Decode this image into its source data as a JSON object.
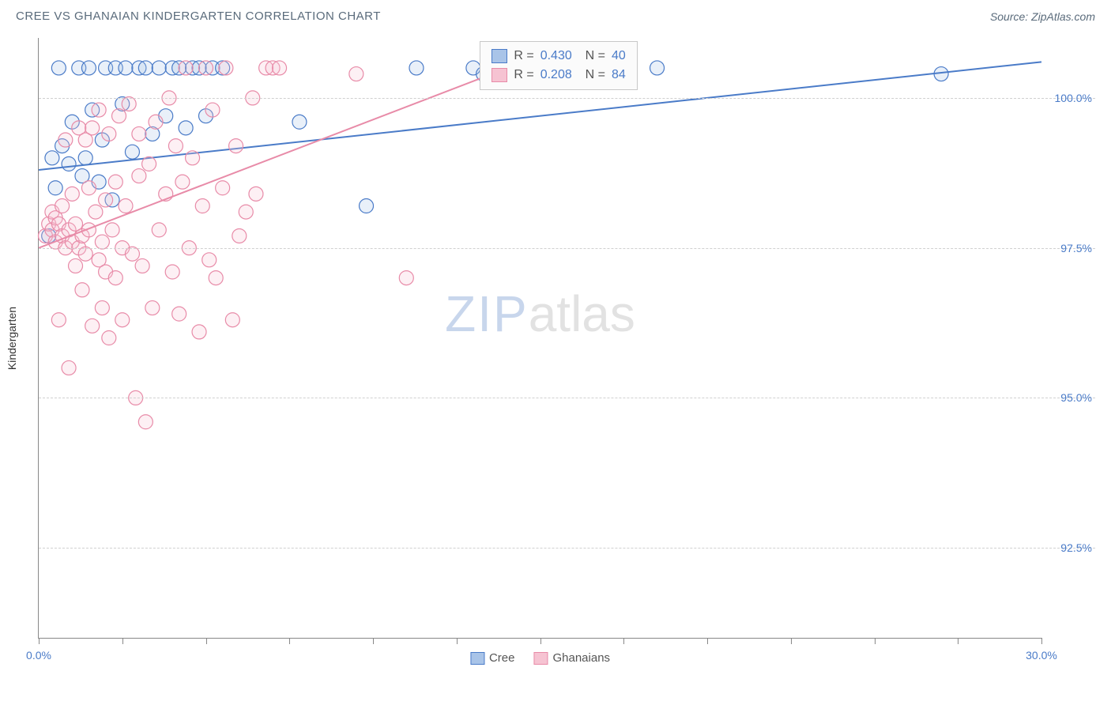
{
  "header": {
    "title": "CREE VS GHANAIAN KINDERGARTEN CORRELATION CHART",
    "source": "Source: ZipAtlas.com"
  },
  "chart": {
    "type": "scatter",
    "y_axis_label": "Kindergarten",
    "xlim": [
      0,
      30
    ],
    "ylim": [
      91,
      101
    ],
    "x_ticks": [
      0,
      2.5,
      5,
      7.5,
      10,
      12.5,
      15,
      17.5,
      20,
      22.5,
      25,
      27.5,
      30
    ],
    "x_tick_labels": {
      "0": "0.0%",
      "30": "30.0%"
    },
    "y_gridlines": [
      92.5,
      95.0,
      97.5,
      100.0
    ],
    "y_tick_labels": {
      "92.5": "92.5%",
      "95.0": "95.0%",
      "97.5": "97.5%",
      "100.0": "100.0%"
    },
    "background_color": "#ffffff",
    "grid_color": "#d0d0d0",
    "axis_color": "#888888",
    "tick_label_color": "#4a7bc8",
    "marker_radius": 9,
    "marker_stroke_width": 1.2,
    "marker_fill_opacity": 0.25,
    "line_width": 2,
    "series": [
      {
        "name": "Cree",
        "color_stroke": "#4a7bc8",
        "color_fill": "#a9c4e8",
        "R": "0.430",
        "N": "40",
        "trend": {
          "x1": 0,
          "y1": 98.8,
          "x2": 30,
          "y2": 100.6
        },
        "points": [
          [
            0.3,
            97.7
          ],
          [
            0.4,
            99.0
          ],
          [
            0.5,
            98.5
          ],
          [
            0.6,
            100.5
          ],
          [
            0.7,
            99.2
          ],
          [
            0.9,
            98.9
          ],
          [
            1.0,
            99.6
          ],
          [
            1.2,
            100.5
          ],
          [
            1.3,
            98.7
          ],
          [
            1.4,
            99.0
          ],
          [
            1.5,
            100.5
          ],
          [
            1.6,
            99.8
          ],
          [
            1.8,
            98.6
          ],
          [
            1.9,
            99.3
          ],
          [
            2.0,
            100.5
          ],
          [
            2.2,
            98.3
          ],
          [
            2.3,
            100.5
          ],
          [
            2.5,
            99.9
          ],
          [
            2.6,
            100.5
          ],
          [
            2.8,
            99.1
          ],
          [
            3.0,
            100.5
          ],
          [
            3.2,
            100.5
          ],
          [
            3.4,
            99.4
          ],
          [
            3.6,
            100.5
          ],
          [
            3.8,
            99.7
          ],
          [
            4.0,
            100.5
          ],
          [
            4.2,
            100.5
          ],
          [
            4.4,
            99.5
          ],
          [
            4.6,
            100.5
          ],
          [
            4.8,
            100.5
          ],
          [
            5.0,
            99.7
          ],
          [
            5.2,
            100.5
          ],
          [
            5.5,
            100.5
          ],
          [
            7.8,
            99.6
          ],
          [
            9.8,
            98.2
          ],
          [
            11.3,
            100.5
          ],
          [
            13.0,
            100.5
          ],
          [
            13.3,
            100.4
          ],
          [
            18.5,
            100.5
          ],
          [
            27.0,
            100.4
          ]
        ]
      },
      {
        "name": "Ghanaians",
        "color_stroke": "#e88ba8",
        "color_fill": "#f6c3d2",
        "R": "0.208",
        "N": "84",
        "trend": {
          "x1": 0,
          "y1": 97.5,
          "x2": 14.5,
          "y2": 100.6
        },
        "points": [
          [
            0.2,
            97.7
          ],
          [
            0.3,
            97.9
          ],
          [
            0.4,
            97.8
          ],
          [
            0.4,
            98.1
          ],
          [
            0.5,
            97.6
          ],
          [
            0.5,
            98.0
          ],
          [
            0.6,
            97.9
          ],
          [
            0.6,
            96.3
          ],
          [
            0.7,
            97.7
          ],
          [
            0.7,
            98.2
          ],
          [
            0.8,
            97.5
          ],
          [
            0.8,
            99.3
          ],
          [
            0.9,
            97.8
          ],
          [
            0.9,
            95.5
          ],
          [
            1.0,
            97.6
          ],
          [
            1.0,
            98.4
          ],
          [
            1.1,
            97.9
          ],
          [
            1.1,
            97.2
          ],
          [
            1.2,
            97.5
          ],
          [
            1.2,
            99.5
          ],
          [
            1.3,
            97.7
          ],
          [
            1.3,
            96.8
          ],
          [
            1.4,
            99.3
          ],
          [
            1.4,
            97.4
          ],
          [
            1.5,
            98.5
          ],
          [
            1.5,
            97.8
          ],
          [
            1.6,
            99.5
          ],
          [
            1.6,
            96.2
          ],
          [
            1.7,
            98.1
          ],
          [
            1.8,
            97.3
          ],
          [
            1.8,
            99.8
          ],
          [
            1.9,
            97.6
          ],
          [
            1.9,
            96.5
          ],
          [
            2.0,
            98.3
          ],
          [
            2.0,
            97.1
          ],
          [
            2.1,
            99.4
          ],
          [
            2.1,
            96.0
          ],
          [
            2.2,
            97.8
          ],
          [
            2.3,
            98.6
          ],
          [
            2.3,
            97.0
          ],
          [
            2.4,
            99.7
          ],
          [
            2.5,
            97.5
          ],
          [
            2.5,
            96.3
          ],
          [
            2.6,
            98.2
          ],
          [
            2.7,
            99.9
          ],
          [
            2.8,
            97.4
          ],
          [
            2.9,
            95.0
          ],
          [
            3.0,
            98.7
          ],
          [
            3.0,
            99.4
          ],
          [
            3.1,
            97.2
          ],
          [
            3.2,
            94.6
          ],
          [
            3.3,
            98.9
          ],
          [
            3.4,
            96.5
          ],
          [
            3.5,
            99.6
          ],
          [
            3.6,
            97.8
          ],
          [
            3.8,
            98.4
          ],
          [
            3.9,
            100.0
          ],
          [
            4.0,
            97.1
          ],
          [
            4.1,
            99.2
          ],
          [
            4.2,
            96.4
          ],
          [
            4.3,
            98.6
          ],
          [
            4.4,
            100.5
          ],
          [
            4.5,
            97.5
          ],
          [
            4.6,
            99.0
          ],
          [
            4.8,
            96.1
          ],
          [
            4.9,
            98.2
          ],
          [
            5.0,
            100.5
          ],
          [
            5.1,
            97.3
          ],
          [
            5.2,
            99.8
          ],
          [
            5.3,
            97.0
          ],
          [
            5.5,
            98.5
          ],
          [
            5.6,
            100.5
          ],
          [
            5.8,
            96.3
          ],
          [
            5.9,
            99.2
          ],
          [
            6.0,
            97.7
          ],
          [
            6.2,
            98.1
          ],
          [
            6.4,
            100.0
          ],
          [
            6.5,
            98.4
          ],
          [
            6.8,
            100.5
          ],
          [
            7.0,
            100.5
          ],
          [
            7.2,
            100.5
          ],
          [
            9.5,
            100.4
          ],
          [
            11.0,
            97.0
          ],
          [
            13.5,
            100.5
          ]
        ]
      }
    ],
    "legend_box": {
      "left_pct": 44,
      "top_pct": 0.5,
      "border_color": "#c8c8c8",
      "bg_color": "#fbfbfb"
    },
    "bottom_legend": [
      "Cree",
      "Ghanaians"
    ],
    "watermark": {
      "zip": "ZIP",
      "atlas": "atlas"
    }
  }
}
